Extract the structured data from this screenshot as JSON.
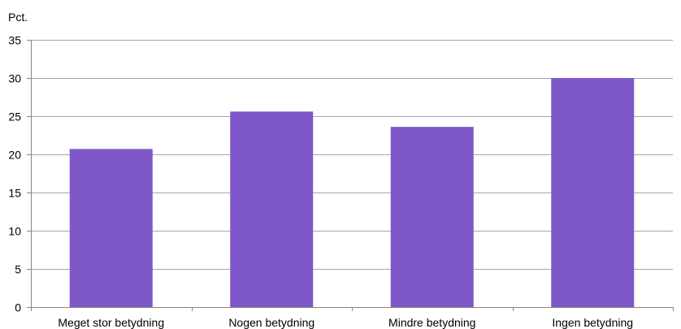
{
  "chart_data": {
    "type": "bar",
    "unit_label": "Pct.",
    "categories": [
      "Meget stor betydning",
      "Nogen betydning",
      "Mindre betydning",
      "Ingen betydning"
    ],
    "values": [
      20.7,
      25.6,
      23.6,
      30.0
    ],
    "xlabel": "",
    "ylabel": "",
    "ylim": [
      0,
      35
    ],
    "yticks": [
      "0",
      "5",
      "10",
      "15",
      "20",
      "25",
      "30",
      "35"
    ],
    "grid": "horizontal",
    "legend": "none",
    "colors": {
      "bar": "#7E57C8",
      "grid": "#A6A6A6",
      "axis": "#868686"
    }
  }
}
